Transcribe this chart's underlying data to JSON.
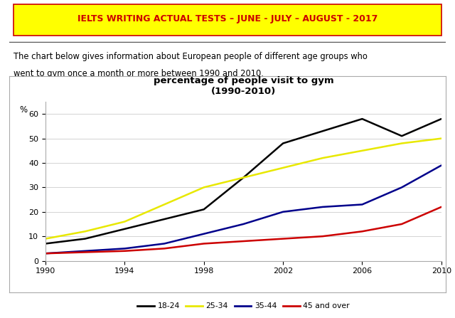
{
  "title_header": "IELTS WRITING ACTUAL TESTS – JUNE - JULY – AUGUST - 2017",
  "description_line1": "The chart below gives information about European people of different age groups who",
  "description_line2": "went to gym once a month or more between 1990 and 2010.",
  "chart_title": "percentage of people visit to gym\n(1990-2010)",
  "ylabel": "%",
  "xlim": [
    1990,
    2010
  ],
  "ylim": [
    0,
    65
  ],
  "yticks": [
    0,
    10,
    20,
    30,
    40,
    50,
    60
  ],
  "xticks": [
    1990,
    1994,
    1998,
    2002,
    2006,
    2010
  ],
  "years": [
    1990,
    1992,
    1994,
    1996,
    1998,
    2000,
    2002,
    2004,
    2006,
    2008,
    2010
  ],
  "series": {
    "18-24": {
      "color": "#000000",
      "values": [
        7,
        9,
        13,
        17,
        21,
        34,
        48,
        53,
        58,
        51,
        58
      ]
    },
    "25-34": {
      "color": "#e8e800",
      "values": [
        9,
        12,
        16,
        23,
        30,
        34,
        38,
        42,
        45,
        48,
        50
      ]
    },
    "35-44": {
      "color": "#00008B",
      "values": [
        3,
        4,
        5,
        7,
        11,
        15,
        20,
        22,
        23,
        30,
        39
      ]
    },
    "45 and over": {
      "color": "#cc0000",
      "values": [
        3,
        3.5,
        4,
        5,
        7,
        8,
        9,
        10,
        12,
        15,
        22
      ]
    }
  },
  "legend_labels": [
    "18-24",
    "25-34",
    "35-44",
    "45 and over"
  ],
  "header_text_color": "#cc0000",
  "header_bg": "#ffff00",
  "bg_color": "#ffffff",
  "chart_bg": "#ffffff"
}
